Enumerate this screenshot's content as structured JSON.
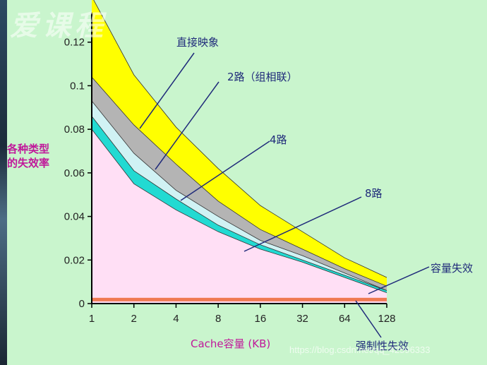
{
  "watermark_logo": "爱课程",
  "watermark_url": "https://blog.csdn.net/qq_42596333",
  "chart_data": {
    "type": "area",
    "xlabel": "Cache容量 (KB)",
    "ylabel": [
      "各种类型",
      "的失效率"
    ],
    "x": [
      1,
      2,
      4,
      8,
      16,
      32,
      64,
      128
    ],
    "x_tick_labels": [
      "1",
      "2",
      "4",
      "8",
      "16",
      "32",
      "64",
      "128"
    ],
    "x_scale": "log2",
    "ylim": [
      0,
      0.14
    ],
    "y_ticks": [
      0,
      0.02,
      0.04,
      0.06,
      0.08,
      0.1,
      0.12
    ],
    "y_tick_labels": [
      "0",
      "0.02",
      "0.04",
      "0.06",
      "0.08",
      "0.1",
      "0.12"
    ],
    "bands": [
      {
        "name": "容量失效",
        "color": "#ffdff5",
        "values": [
          0.08,
          0.055,
          0.043,
          0.033,
          0.025,
          0.019,
          0.012,
          0.005
        ]
      },
      {
        "name": "8路",
        "color": "#22dad2",
        "values": [
          0.086,
          0.061,
          0.048,
          0.036,
          0.027,
          0.02,
          0.013,
          0.006
        ]
      },
      {
        "name": "4路",
        "color": "#d0f2f4",
        "values": [
          0.093,
          0.069,
          0.052,
          0.04,
          0.029,
          0.022,
          0.014,
          0.006
        ]
      },
      {
        "name": "2路（组相联）",
        "color": "#b4b4b4",
        "values": [
          0.104,
          0.082,
          0.064,
          0.047,
          0.034,
          0.025,
          0.016,
          0.008
        ]
      },
      {
        "name": "直接映象",
        "color": "#ffff00",
        "values": [
          0.141,
          0.105,
          0.081,
          0.062,
          0.045,
          0.033,
          0.021,
          0.012
        ]
      }
    ],
    "compulsory": {
      "name": "强制性失效",
      "color": "#f07a52",
      "value": 0.002
    },
    "annotations": [
      "直接映象",
      "2路（组相联）",
      "4路",
      "8路",
      "容量失效",
      "强制性失效"
    ]
  }
}
